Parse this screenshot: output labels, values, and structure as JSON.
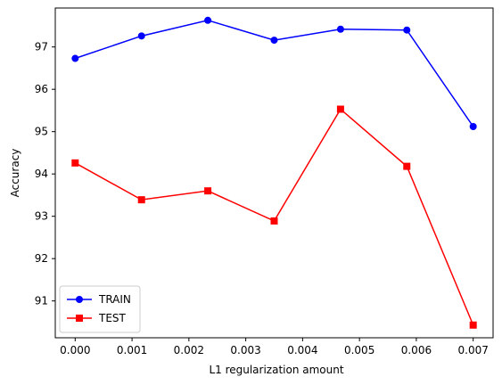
{
  "chart_data": {
    "type": "line",
    "title": "",
    "xlabel": "L1 regularization amount",
    "ylabel": "Accuracy",
    "xlim": [
      -0.00035,
      0.00735
    ],
    "ylim": [
      90.13,
      97.92
    ],
    "xticks": [
      0.0,
      0.001,
      0.002,
      0.003,
      0.004,
      0.005,
      0.006,
      0.007
    ],
    "xtick_labels": [
      "0.000",
      "0.001",
      "0.002",
      "0.003",
      "0.004",
      "0.005",
      "0.006",
      "0.007"
    ],
    "yticks": [
      91,
      92,
      93,
      94,
      95,
      96,
      97
    ],
    "ytick_labels": [
      "91",
      "92",
      "93",
      "94",
      "95",
      "96",
      "97"
    ],
    "x": [
      0.0,
      0.001167,
      0.002333,
      0.0035,
      0.004667,
      0.005833,
      0.007
    ],
    "series": [
      {
        "name": "TRAIN",
        "color": "#0000ff",
        "marker": "circle",
        "values": [
          96.73,
          97.26,
          97.63,
          97.16,
          97.42,
          97.4,
          95.12
        ]
      },
      {
        "name": "TEST",
        "color": "#ff0000",
        "marker": "square",
        "values": [
          94.26,
          93.39,
          93.6,
          92.89,
          95.53,
          94.18,
          90.43
        ]
      }
    ],
    "grid": false,
    "legend_position": "lower-left"
  }
}
